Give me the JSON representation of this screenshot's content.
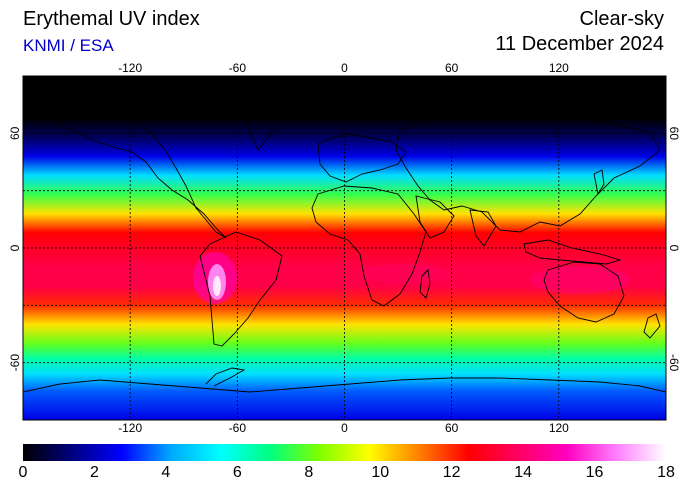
{
  "header": {
    "title": "Erythemal UV index",
    "source": "KNMI / ESA",
    "mode": "Clear-sky",
    "date": "11 December 2024"
  },
  "map": {
    "projection": "equirectangular",
    "lon_range": [
      -180,
      180
    ],
    "lat_range": [
      -90,
      90
    ],
    "lon_ticks": [
      -120,
      -60,
      0,
      60,
      120
    ],
    "lon_tick_labels": [
      "-120",
      "-60",
      "0",
      "60",
      "120"
    ],
    "lat_ticks": [
      60,
      0,
      -60
    ],
    "lat_tick_labels": [
      "60",
      "0",
      "-60"
    ],
    "gridlines": "dotted",
    "uv_profile_by_latitude": [
      {
        "lat": 90,
        "uv": 0
      },
      {
        "lat": 68,
        "uv": 0
      },
      {
        "lat": 58,
        "uv": 1
      },
      {
        "lat": 48,
        "uv": 2.5
      },
      {
        "lat": 38,
        "uv": 5
      },
      {
        "lat": 28,
        "uv": 7.5
      },
      {
        "lat": 18,
        "uv": 10
      },
      {
        "lat": 8,
        "uv": 12.5
      },
      {
        "lat": 0,
        "uv": 13
      },
      {
        "lat": -10,
        "uv": 13.5
      },
      {
        "lat": -20,
        "uv": 13.5
      },
      {
        "lat": -30,
        "uv": 12
      },
      {
        "lat": -40,
        "uv": 10
      },
      {
        "lat": -50,
        "uv": 8
      },
      {
        "lat": -58,
        "uv": 6.5
      },
      {
        "lat": -66,
        "uv": 5
      },
      {
        "lat": -75,
        "uv": 3.5
      },
      {
        "lat": -90,
        "uv": 2.5
      }
    ],
    "uv_max_region": "Andes / Altiplano",
    "uv_max_value": 18
  },
  "colorbar": {
    "min": 0,
    "max": 18,
    "labels": [
      "0",
      "2",
      "4",
      "6",
      "8",
      "10",
      "12",
      "14",
      "16",
      "18"
    ],
    "colors": [
      "#000000",
      "#000080",
      "#0000ff",
      "#00aaff",
      "#00ffff",
      "#00ff80",
      "#80ff00",
      "#ffff00",
      "#ff8000",
      "#ff0000",
      "#ff0060",
      "#ff00c0",
      "#ff80ff",
      "#ffffff"
    ]
  },
  "colors": {
    "source_text": "#0000cc",
    "coastline": "#000000"
  }
}
